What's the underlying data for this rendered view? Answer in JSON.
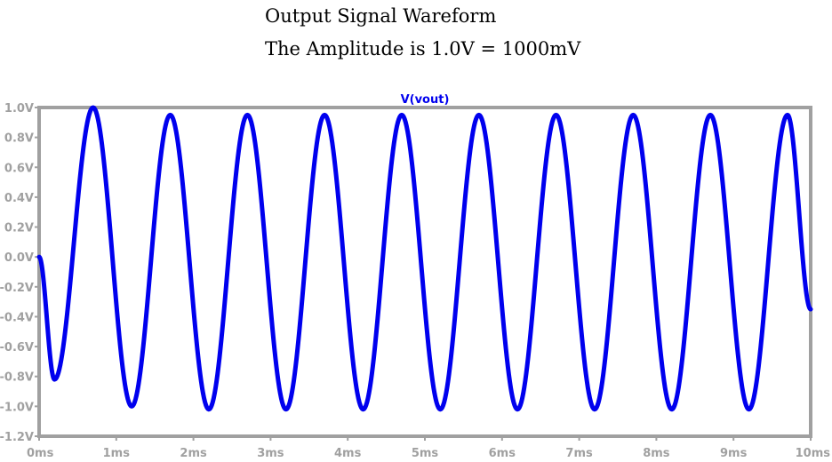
{
  "header": {
    "title": "Output Signal Wareform",
    "subtitle": "The Amplitude is 1.0V = 1000mV"
  },
  "chart_data": {
    "type": "line",
    "trace_label": "V(vout)",
    "x_unit": "ms",
    "y_unit": "V",
    "xlim": [
      0,
      10
    ],
    "ylim": [
      -1.2,
      1.0
    ],
    "x_ticks": [
      0,
      1,
      2,
      3,
      4,
      5,
      6,
      7,
      8,
      9,
      10
    ],
    "x_tick_labels": [
      "0ms",
      "1ms",
      "2ms",
      "3ms",
      "4ms",
      "5ms",
      "6ms",
      "7ms",
      "8ms",
      "9ms",
      "10ms"
    ],
    "y_ticks": [
      1.0,
      0.8,
      0.6,
      0.4,
      0.2,
      0.0,
      -0.2,
      -0.4,
      -0.6,
      -0.8,
      -1.0,
      -1.2
    ],
    "y_tick_labels": [
      "1.0V",
      "0.8V",
      "0.6V",
      "0.4V",
      "0.2V",
      "0.0V",
      "-0.2V",
      "-0.4V",
      "-0.6V",
      "-0.8V",
      "-1.0V",
      "-1.2V"
    ],
    "grid": false,
    "series": [
      {
        "name": "V(vout)",
        "color": "#0000ee",
        "frequency_hz": 1000,
        "x": [
          0,
          0.2,
          0.7,
          1.2,
          1.7,
          2.2,
          2.7,
          3.2,
          3.7,
          4.2,
          4.7,
          5.2,
          5.7,
          6.2,
          6.7,
          7.2,
          7.7,
          8.2,
          8.7,
          9.2,
          9.7,
          10
        ],
        "y": [
          0.0,
          -0.82,
          1.0,
          -1.0,
          0.95,
          -1.02,
          0.95,
          -1.02,
          0.95,
          -1.02,
          0.95,
          -1.02,
          0.95,
          -1.02,
          0.95,
          -1.02,
          0.95,
          -1.02,
          0.95,
          -1.02,
          0.95,
          -0.35
        ]
      }
    ]
  }
}
